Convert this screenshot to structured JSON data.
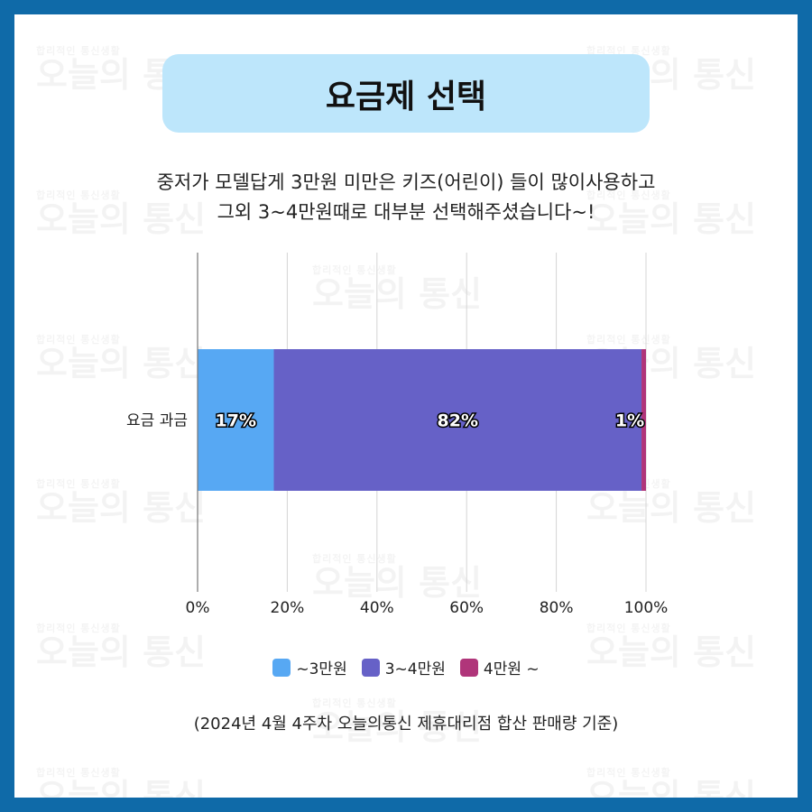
{
  "watermark": {
    "small": "합리적인 통신생활",
    "big": "오늘의 통신"
  },
  "title": "요금제 선택",
  "description": {
    "line1": "중저가 모델답게 3만원 미만은 키즈(어린이) 들이 많이사용하고",
    "line2": "그외 3~4만원때로 대부분 선택해주셨습니다~!"
  },
  "chart_data": {
    "type": "bar",
    "orientation": "horizontal",
    "stacked": true,
    "categories": [
      "요금 과금"
    ],
    "series": [
      {
        "name": "~3만원",
        "values": [
          17
        ],
        "label": "17%",
        "color": "#57a8f3"
      },
      {
        "name": "3~4만원",
        "values": [
          82
        ],
        "label": "82%",
        "color": "#6661c7"
      },
      {
        "name": "4만원 ~",
        "values": [
          1
        ],
        "label": "1%",
        "color": "#b0357a"
      }
    ],
    "xlim": [
      0,
      100
    ],
    "xticks": [
      "0%",
      "20%",
      "40%",
      "60%",
      "80%",
      "100%"
    ],
    "grid": true,
    "legend_position": "bottom"
  },
  "footnote": "(2024년 4월 4주차 오늘의통신 제휴대리점 합산 판매량 기준)"
}
